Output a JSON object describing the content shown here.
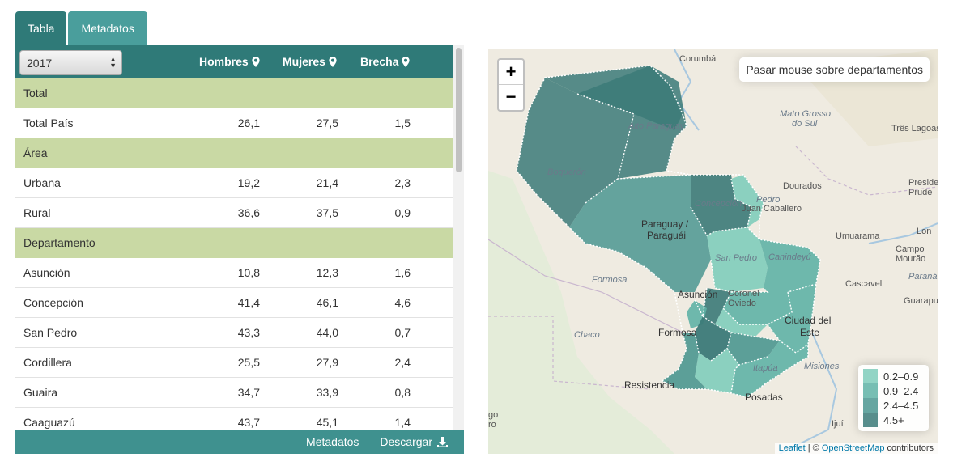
{
  "tabs": [
    {
      "label": "Tabla",
      "active": true
    },
    {
      "label": "Metadatos",
      "active": false
    }
  ],
  "table": {
    "year_selected": "2017",
    "columns": [
      "Hombres",
      "Mujeres",
      "Brecha"
    ],
    "rows": [
      {
        "type": "section",
        "label": "Total"
      },
      {
        "type": "data",
        "label": "Total País",
        "hombres": "26,1",
        "mujeres": "27,5",
        "brecha": "1,5"
      },
      {
        "type": "section",
        "label": "Área"
      },
      {
        "type": "data",
        "label": "Urbana",
        "hombres": "19,2",
        "mujeres": "21,4",
        "brecha": "2,3"
      },
      {
        "type": "data",
        "label": "Rural",
        "hombres": "36,6",
        "mujeres": "37,5",
        "brecha": "0,9"
      },
      {
        "type": "section",
        "label": "Departamento"
      },
      {
        "type": "data",
        "label": "Asunción",
        "hombres": "10,8",
        "mujeres": "12,3",
        "brecha": "1,6"
      },
      {
        "type": "data",
        "label": "Concepción",
        "hombres": "41,4",
        "mujeres": "46,1",
        "brecha": "4,6"
      },
      {
        "type": "data",
        "label": "San Pedro",
        "hombres": "43,3",
        "mujeres": "44,0",
        "brecha": "0,7"
      },
      {
        "type": "data",
        "label": "Cordillera",
        "hombres": "25,5",
        "mujeres": "27,9",
        "brecha": "2,4"
      },
      {
        "type": "data",
        "label": "Guaira",
        "hombres": "34,7",
        "mujeres": "33,9",
        "brecha": "0,8"
      },
      {
        "type": "data",
        "label": "Caaguazú",
        "hombres": "43,7",
        "mujeres": "45,1",
        "brecha": "1,4"
      }
    ],
    "footer": {
      "metadatos_label": "Metadatos",
      "descargar_label": "Descargar"
    }
  },
  "map": {
    "hover_text": "Pasar mouse sobre departamentos",
    "zoom_in": "+",
    "zoom_out": "−",
    "legend": [
      {
        "label": "0.2–0.9",
        "color": "#7fcdbb"
      },
      {
        "label": "0.9–2.4",
        "color": "#5fb3a6"
      },
      {
        "label": "2.4–4.5",
        "color": "#4b9790"
      },
      {
        "label": "4.5+",
        "color": "#3b7a78"
      }
    ],
    "attribution": {
      "leaflet": "Leaflet",
      "sep": " | © ",
      "osm": "OpenStreetMap",
      "suffix": " contributors"
    },
    "labels": {
      "corumba": "Corumbá",
      "mato_grosso": "Mato Grosso",
      "do_sul": "do Sul",
      "tres_lagoas": "Três Lagoas",
      "alto_paraguay": "Alto Paraguay",
      "boqueron": "Boquerón",
      "concepcion": "Concepción",
      "pedro": "Pedro",
      "juan_caballero": "Juan Caballero",
      "dourados": "Dourados",
      "preside": "Preside",
      "prude": "Prude",
      "paraguay": "Paraguay /",
      "paraguai": "Paraguái",
      "san_pedro": "San Pedro",
      "canindeyu": "Canindeyú",
      "umuarama": "Umuarama",
      "lon": "Lon",
      "campo": "Campo",
      "mourao": "Mourão",
      "formosa_it": "Formosa",
      "coronel": "Coronel",
      "oviedo": "Oviedo",
      "cascavel": "Cascavel",
      "parana": "Paraná",
      "guarapu": "Guarapu",
      "asuncion": "Asunción",
      "formosa": "Formosa",
      "ciudad": "Ciudad del",
      "este": "Este",
      "chaco": "Chaco",
      "misiones": "Misiones",
      "itapua": "Itapúa",
      "resistencia": "Resistencia",
      "posadas": "Posadas",
      "ijui": "Ijuí",
      "go": "go",
      "ro": "ro"
    }
  }
}
